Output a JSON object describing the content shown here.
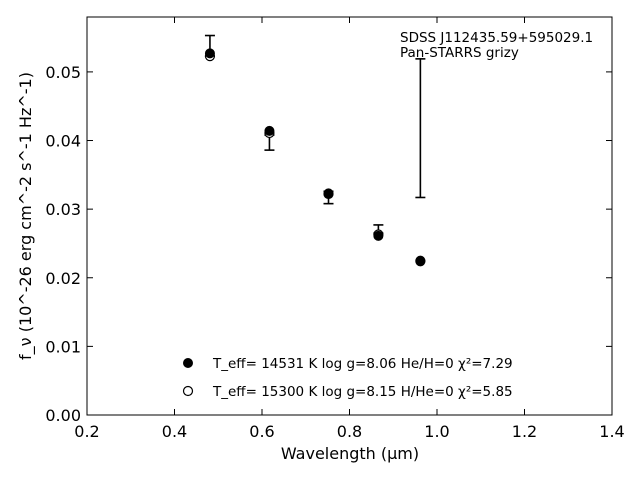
{
  "chart_data": {
    "type": "scatter",
    "xlabel": "Wavelength (μm)",
    "ylabel": "f_ν (10^-26 erg cm^-2 s^-1 Hz^-1)",
    "xlim": [
      0.2,
      1.4
    ],
    "ylim": [
      0.0,
      0.058
    ],
    "x_ticks": [
      0.2,
      0.4,
      0.6,
      0.8,
      1.0,
      1.2,
      1.4
    ],
    "x_tick_labels": [
      "0.2",
      "0.4",
      "0.6",
      "0.8",
      "1.0",
      "1.2",
      "1.4"
    ],
    "y_ticks": [
      0.0,
      0.01,
      0.02,
      0.03,
      0.04,
      0.05
    ],
    "y_tick_labels": [
      "0.00",
      "0.01",
      "0.02",
      "0.03",
      "0.04",
      "0.05"
    ],
    "annotation_lines": [
      "SDSS J112435.59+595029.1",
      "Pan-STARRS grizy"
    ],
    "observed": {
      "x": [
        0.481,
        0.617,
        0.752,
        0.866,
        0.962
      ],
      "y": [
        0.0538,
        0.0397,
        0.0317,
        0.0271,
        0.0418
      ],
      "yerr_low": [
        0.0015,
        0.0011,
        0.0009,
        0.0006,
        0.0101
      ],
      "yerr_high": [
        0.0015,
        0.0011,
        0.0009,
        0.0006,
        0.0101
      ]
    },
    "series": [
      {
        "name": "T_eff= 14531 K  log g=8.06  He/H=0  χ²=7.29",
        "marker": "filled-circle",
        "x": [
          0.481,
          0.617,
          0.752,
          0.866,
          0.962
        ],
        "y": [
          0.0527,
          0.0414,
          0.0323,
          0.0261,
          0.0225
        ]
      },
      {
        "name": "T_eff= 15300 K  log g=8.15  H/He=0  χ²=5.85",
        "marker": "open-circle",
        "x": [
          0.481,
          0.617,
          0.752,
          0.866,
          0.962
        ],
        "y": [
          0.0523,
          0.0411,
          0.0322,
          0.0263,
          0.0224
        ]
      }
    ],
    "legend_placement": "lower-center",
    "grid": false,
    "colors": {
      "marker": "#000000",
      "background": "#ffffff"
    }
  }
}
